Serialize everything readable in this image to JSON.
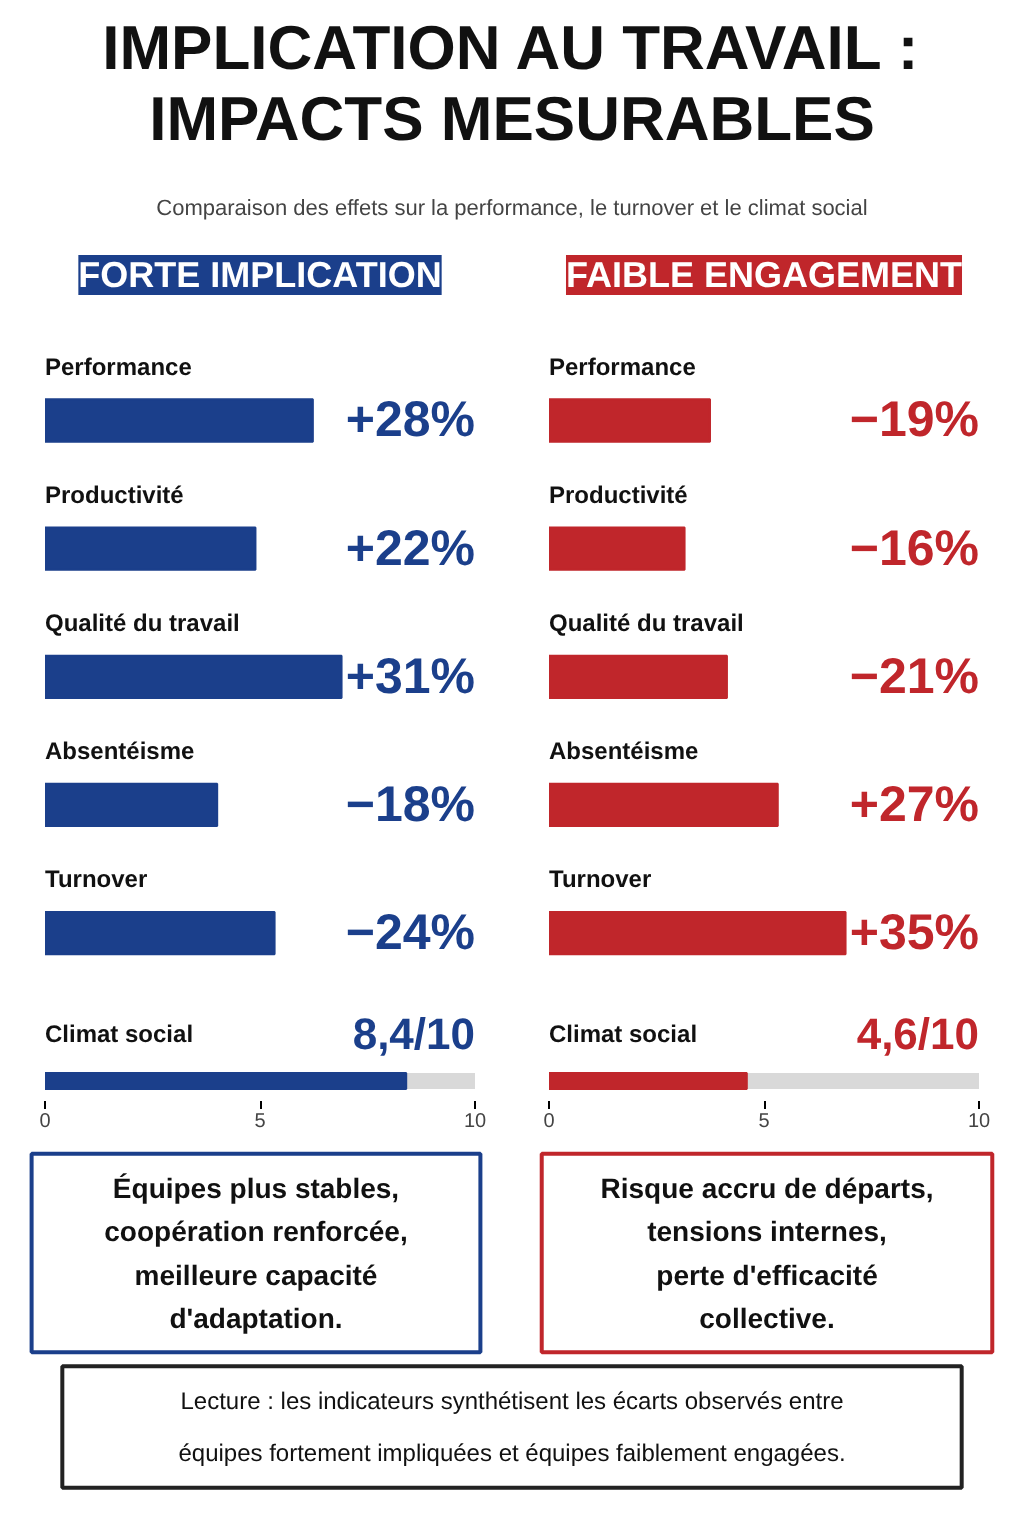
{
  "chart_data": [
    {
      "type": "other",
      "title": "IMPLICATION AU TRAVAIL : IMPACTS MESURABLES",
      "subtitle": "Comparaison des effets sur la performance, le turnover et le climat social"
    },
    {
      "type": "bar",
      "orientation": "horizontal",
      "title": "FORTE IMPLICATION",
      "categories": [
        "Performance",
        "Productivité",
        "Qualité du travail",
        "Absentéisme",
        "Turnover"
      ],
      "values": [
        28,
        22,
        31,
        18,
        24
      ],
      "color": "#1b3f8b",
      "value_labels": [
        "+28%",
        "+22%",
        "+31%",
        null,
        null
      ],
      "annotations": [
        "−18%",
        "−24%"
      ]
    },
    {
      "type": "bar",
      "orientation": "horizontal",
      "title": "FAIBLE ENGAGEMENT",
      "categories": [
        "Performance",
        "Productivité",
        "Qualité du travail",
        "Absentéisme",
        "Turnover"
      ],
      "values": [
        19,
        16,
        21,
        27,
        35
      ],
      "color": "#c0262b",
      "value_labels": [
        null,
        null,
        null,
        "+27%",
        "+35%"
      ],
      "annotations": [
        "−19%",
        "−16%",
        "−21%"
      ]
    },
    {
      "type": "bar",
      "orientation": "horizontal",
      "categories": [
        "Climat social"
      ],
      "values": [
        8.4
      ],
      "value_labels": [
        "8,4/10"
      ],
      "xlim": [
        0,
        10
      ],
      "xticks": [
        0,
        5,
        10
      ],
      "color": "#1b3f8b",
      "annotations": [
        "Équipes plus stables,\ncoopération renforcée,\nmeilleure capacité\nd'adaptation."
      ]
    },
    {
      "type": "bar",
      "orientation": "horizontal",
      "categories": [
        "Climat social"
      ],
      "values": [
        4.6
      ],
      "value_labels": [
        "4,6/10"
      ],
      "xlim": [
        0,
        10
      ],
      "xticks": [
        0,
        5,
        10
      ],
      "color": "#c0262b",
      "annotations": [
        "Risque accru de départs,\ntensions internes,\nperte d'efficacité\ncollective."
      ]
    },
    {
      "type": "other",
      "annotations": [
        "Lecture : les indicateurs synthétisent les écarts observés entre\néquipes fortement impliquées et équipes faiblement engagées."
      ]
    }
  ]
}
